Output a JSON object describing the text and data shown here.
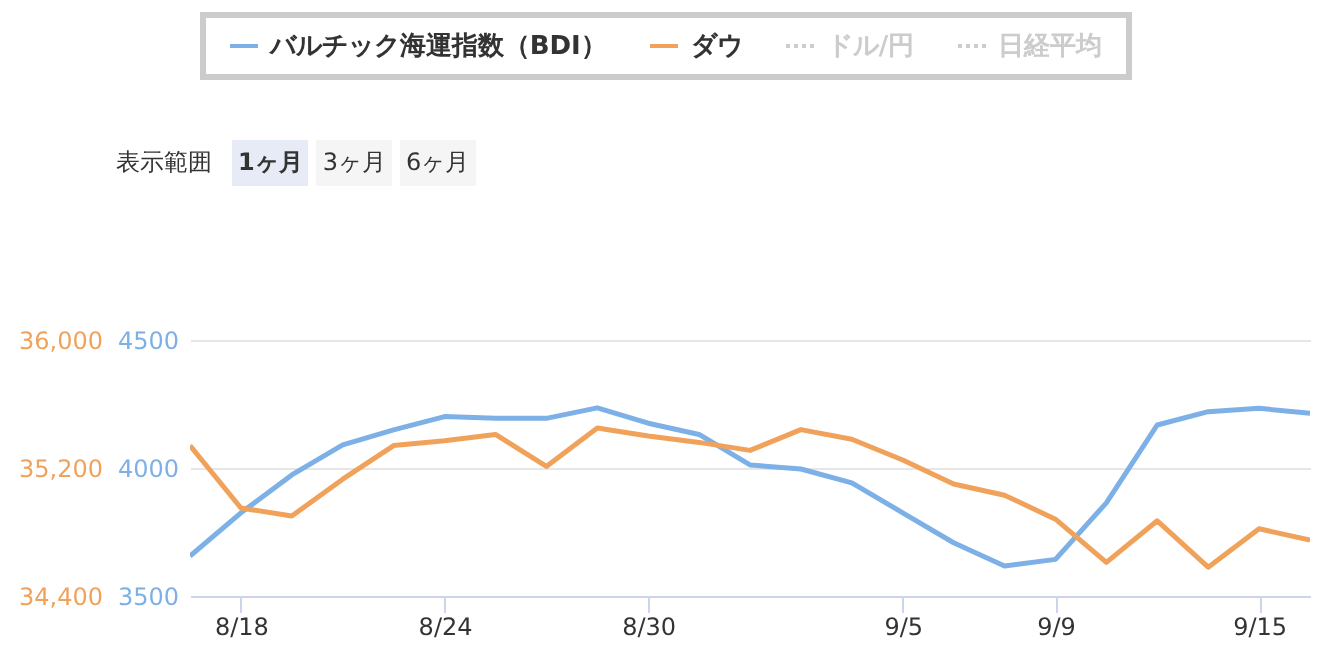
{
  "chart_data": {
    "type": "line",
    "categories": [
      null,
      "8/18",
      null,
      null,
      null,
      "8/24",
      null,
      null,
      null,
      "8/30",
      null,
      null,
      null,
      null,
      "9/5",
      null,
      null,
      "9/9",
      null,
      null,
      null,
      "9/15",
      null
    ],
    "ylim": [
      3500,
      4500
    ],
    "yticks": [
      3500,
      4000,
      4500
    ],
    "y2lim": [
      34400,
      36000
    ],
    "y2ticks": [
      {
        "value": 34400,
        "label": "34,400"
      },
      {
        "value": 35200,
        "label": "35,200"
      },
      {
        "value": 36000,
        "label": "36,000"
      }
    ],
    "series": [
      {
        "name": "バルチック海運指数（BDI）",
        "color": "#7cb0e6",
        "values": [
          3656,
          3825,
          3973,
          4090,
          4149,
          4201,
          4194,
          4194,
          4235,
          4175,
          4131,
          4012,
          3996,
          3942,
          3825,
          3708,
          3617,
          3643,
          3864,
          4168,
          4220,
          4233,
          4214
        ]
      },
      {
        "name": "ダウ",
        "color": "#f0a25a",
        "axis": "y2",
        "values": [
          35340,
          34950,
          34900,
          35130,
          35340,
          35370,
          35410,
          35210,
          35450,
          35400,
          35360,
          35310,
          35440,
          35380,
          35250,
          35100,
          35030,
          34880,
          34610,
          34870,
          34580,
          34820,
          34750
        ]
      },
      {
        "name": "ドル/円",
        "color": "#cccccc",
        "line_style": "dotted",
        "values": [
          null,
          null,
          null,
          null,
          null,
          null,
          null,
          null,
          null,
          null,
          null,
          null,
          null,
          null,
          null,
          null,
          null,
          null,
          null,
          null,
          null,
          null,
          null
        ]
      },
      {
        "name": "日経平均",
        "color": "#cccccc",
        "line_style": "dotted",
        "values": [
          null,
          null,
          null,
          null,
          null,
          null,
          null,
          null,
          null,
          null,
          null,
          null,
          null,
          null,
          null,
          null,
          null,
          null,
          null,
          null,
          null,
          null,
          null
        ]
      }
    ],
    "grid": "y",
    "legend": "top",
    "annotations": [
      "表示範囲",
      "1ヶ月",
      "3ヶ月",
      "6ヶ月"
    ]
  }
}
